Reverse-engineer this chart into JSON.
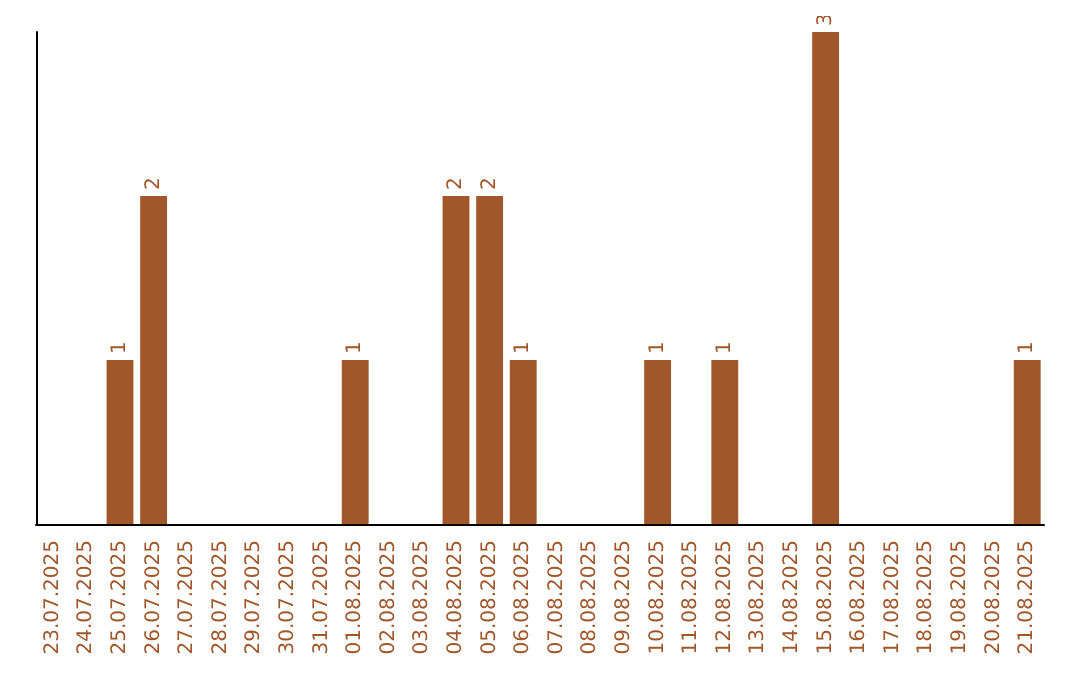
{
  "chart_data": {
    "type": "bar",
    "categories": [
      "23.07.2025",
      "24.07.2025",
      "25.07.2025",
      "26.07.2025",
      "27.07.2025",
      "28.07.2025",
      "29.07.2025",
      "30.07.2025",
      "31.07.2025",
      "01.08.2025",
      "02.08.2025",
      "03.08.2025",
      "04.08.2025",
      "05.08.2025",
      "06.08.2025",
      "07.08.2025",
      "08.08.2025",
      "09.08.2025",
      "10.08.2025",
      "11.08.2025",
      "12.08.2025",
      "13.08.2025",
      "14.08.2025",
      "15.08.2025",
      "16.08.2025",
      "17.08.2025",
      "18.08.2025",
      "19.08.2025",
      "20.08.2025",
      "21.08.2025"
    ],
    "values": [
      0,
      0,
      1,
      2,
      0,
      0,
      0,
      0,
      0,
      1,
      0,
      0,
      2,
      2,
      1,
      0,
      0,
      0,
      1,
      0,
      1,
      0,
      0,
      3,
      0,
      0,
      0,
      0,
      0,
      1
    ],
    "value_labels": [
      null,
      null,
      "1",
      "2",
      null,
      null,
      null,
      null,
      null,
      "1",
      null,
      null,
      "2",
      "2",
      "1",
      null,
      null,
      null,
      "1",
      null,
      "1",
      null,
      null,
      "3",
      null,
      null,
      null,
      null,
      null,
      "1"
    ],
    "color": "#a0572a",
    "tick_labels": "x"
  }
}
